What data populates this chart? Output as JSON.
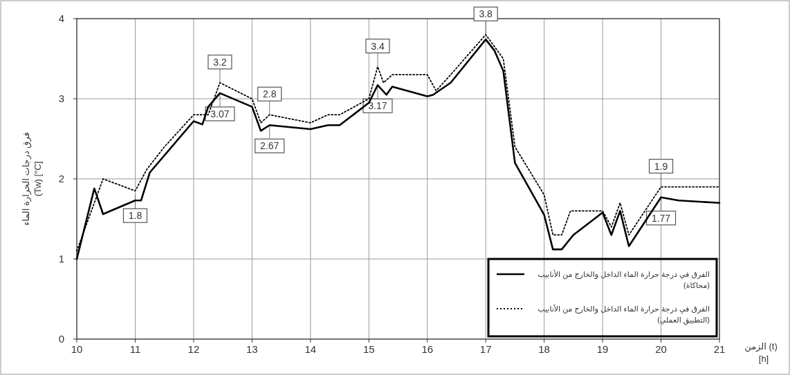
{
  "chart_data": {
    "type": "line",
    "xlabel": "الزمن (t) [h]",
    "ylabel": "فرق درجات الحرارة الماء (Tw) [°C]",
    "xlim": [
      10,
      21
    ],
    "xticks": [
      10,
      11,
      12,
      13,
      14,
      15,
      16,
      17,
      18,
      19,
      20,
      21
    ],
    "ylim": [
      0,
      4
    ],
    "yticks": [
      0,
      1,
      2,
      3,
      4
    ],
    "grid": true,
    "legend": "bottom right",
    "series": [
      {
        "name": "الفرق في درجة حرارة الماء الداخل والخارج من الأنابيب (محاكاة)",
        "color": "#000000",
        "line_style": "solid",
        "x": [
          10,
          10.3,
          10.45,
          11,
          11.1,
          11.25,
          12,
          12.15,
          12.25,
          12.45,
          13,
          13.15,
          13.3,
          14,
          14.3,
          14.5,
          15,
          15.15,
          15.3,
          15.4,
          16,
          16.1,
          16.4,
          17,
          17.15,
          17.3,
          17.5,
          18,
          18.15,
          18.3,
          18.5,
          19,
          19.15,
          19.3,
          19.45,
          20,
          20.3,
          21
        ],
        "values": [
          1,
          1.88,
          1.56,
          1.73,
          1.73,
          2.08,
          2.72,
          2.68,
          2.9,
          3.07,
          2.9,
          2.6,
          2.67,
          2.62,
          2.67,
          2.67,
          2.95,
          3.17,
          3.05,
          3.15,
          3.03,
          3.05,
          3.2,
          3.74,
          3.6,
          3.35,
          2.2,
          1.55,
          1.12,
          1.12,
          1.3,
          1.58,
          1.3,
          1.6,
          1.16,
          1.77,
          1.73,
          1.7
        ]
      },
      {
        "name": "الفرق في درجة حرارة الماء الداخل والخارج من الأنابيب (التطبيق العملي)",
        "color": "#000000",
        "line_style": "dotted",
        "x": [
          10,
          10.3,
          10.45,
          11,
          11.2,
          11.5,
          12,
          12.25,
          12.45,
          13,
          13.15,
          13.3,
          14,
          14.3,
          14.5,
          15,
          15.15,
          15.25,
          15.4,
          16,
          16.15,
          16.4,
          17,
          17.3,
          17.5,
          18,
          18.15,
          18.3,
          18.45,
          19,
          19.15,
          19.3,
          19.45,
          20,
          21
        ],
        "values": [
          1.1,
          1.7,
          2.0,
          1.85,
          2.12,
          2.4,
          2.8,
          2.8,
          3.2,
          3.0,
          2.7,
          2.8,
          2.7,
          2.8,
          2.8,
          3.0,
          3.4,
          3.2,
          3.3,
          3.3,
          3.1,
          3.3,
          3.8,
          3.5,
          2.4,
          1.8,
          1.3,
          1.3,
          1.6,
          1.6,
          1.4,
          1.7,
          1.3,
          1.9,
          1.9
        ]
      }
    ],
    "annotations": [
      {
        "text": "1.8",
        "x": 11,
        "y": 1.8
      },
      {
        "text": "3.2",
        "x": 12.45,
        "y": 3.2
      },
      {
        "text": "3.07",
        "x": 12.45,
        "y": 3.07
      },
      {
        "text": "2.8",
        "x": 13.3,
        "y": 2.8
      },
      {
        "text": "2.67",
        "x": 13.3,
        "y": 2.67
      },
      {
        "text": "3.4",
        "x": 15.15,
        "y": 3.4
      },
      {
        "text": "3.17",
        "x": 15.15,
        "y": 3.17
      },
      {
        "text": "3.8",
        "x": 17,
        "y": 3.8
      },
      {
        "text": "1.9",
        "x": 20,
        "y": 1.9
      },
      {
        "text": "1.77",
        "x": 20,
        "y": 1.77
      }
    ]
  }
}
